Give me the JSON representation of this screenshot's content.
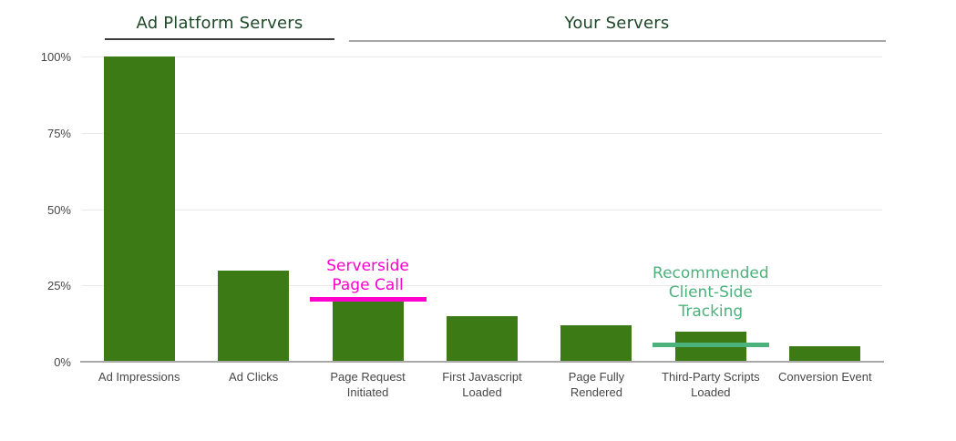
{
  "page": {
    "background": "#ffffff"
  },
  "group_headers": [
    {
      "label": "Ad Platform Servers",
      "text_color": "#1e4828",
      "underline_color": "#3d3d3d"
    },
    {
      "label": "Your Servers",
      "text_color": "#1e4828",
      "underline_color": "#a6a6a6"
    }
  ],
  "chart_data": {
    "type": "bar",
    "title": "",
    "xlabel": "",
    "ylabel": "",
    "unit": "%",
    "categories": [
      "Ad Impressions",
      "Ad Clicks",
      "Page Request Initiated",
      "First Javascript Loaded",
      "Page Fully Rendered",
      "Third-Party Scripts Loaded",
      "Conversion Event"
    ],
    "values": [
      100,
      30,
      20,
      15,
      12,
      10,
      5
    ],
    "ylim": [
      0,
      100
    ],
    "yticks": [
      {
        "label": "0%",
        "value": 0
      },
      {
        "label": "25%",
        "value": 25
      },
      {
        "label": "50%",
        "value": 50
      },
      {
        "label": "75%",
        "value": 75
      },
      {
        "label": "100%",
        "value": 100
      }
    ],
    "grid": "horizontal",
    "legend": "none",
    "bar_color": "#3c7a16",
    "groups": [
      {
        "label": "Ad Platform Servers",
        "category_indices": [
          0,
          1
        ]
      },
      {
        "label": "Your Servers",
        "category_indices": [
          2,
          3,
          4,
          5,
          6
        ]
      }
    ]
  },
  "annotations": [
    {
      "id": "serverside-page-call",
      "lines": [
        "Serverside",
        "Page Call"
      ],
      "color": "#ff00cc",
      "bar_index": 2,
      "line_value_pct": 20.5
    },
    {
      "id": "recommended-client-side-tracking",
      "lines": [
        "Recommended",
        "Client-Side",
        "Tracking"
      ],
      "color": "#4cb27c",
      "bar_index": 5,
      "line_value_pct": 5.7
    }
  ],
  "colors": {
    "gridline": "#e9e9e9",
    "baseline": "#a9a9a9",
    "axis_label": "#474747"
  }
}
